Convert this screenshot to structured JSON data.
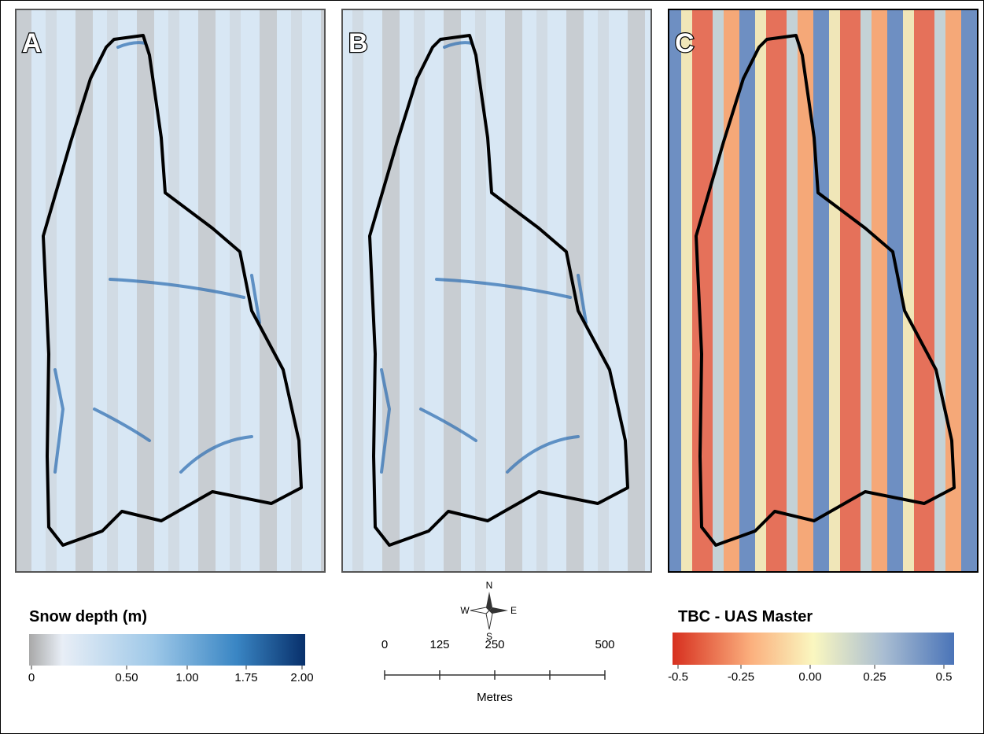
{
  "panels": [
    {
      "label": "A"
    },
    {
      "label": "B"
    },
    {
      "label": "C"
    }
  ],
  "snow_legend": {
    "title": "Snow depth (m)",
    "tick_labels": [
      "0",
      "0.50",
      "1.00",
      "1.75",
      "2.00"
    ]
  },
  "scale_bar": {
    "ticks": [
      0,
      125,
      250,
      500
    ],
    "unit": "Metres"
  },
  "compass": {
    "north": "N",
    "west": "W",
    "east": "E",
    "south": "S"
  },
  "difference_legend": {
    "title": "TBC - UAS Master",
    "tick_labels": [
      "-0.5",
      "-0.25",
      "0.00",
      "0.25",
      "0.5"
    ]
  }
}
